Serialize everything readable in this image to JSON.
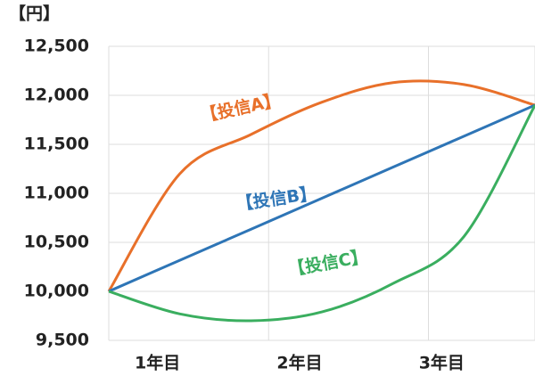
{
  "chart_data": {
    "type": "line",
    "unit_label": "【円】",
    "categories": [
      null,
      "1年目",
      null,
      "2年目",
      null,
      "3年目",
      null
    ],
    "series": [
      {
        "name": "【投信A】",
        "color": "#e8702a",
        "values": [
          10000,
          11200,
          11600,
          11930,
          12130,
          12110,
          11900
        ]
      },
      {
        "name": "【投信B】",
        "color": "#2e75b6",
        "values": [
          10000,
          10317,
          10633,
          10950,
          11267,
          11583,
          11900
        ]
      },
      {
        "name": "【投信C】",
        "color": "#3aae5f",
        "values": [
          10000,
          9770,
          9700,
          9790,
          10080,
          10560,
          11900
        ]
      }
    ],
    "ylim": [
      9500,
      12500
    ],
    "yticks": [
      {
        "value": 9500,
        "label": "9,500"
      },
      {
        "value": 10000,
        "label": "10,000"
      },
      {
        "value": 10500,
        "label": "10,500"
      },
      {
        "value": 11000,
        "label": "11,000"
      },
      {
        "value": 11500,
        "label": "11,500"
      },
      {
        "value": 12000,
        "label": "12,000"
      },
      {
        "value": 12500,
        "label": "12,500"
      }
    ],
    "grid": true
  }
}
